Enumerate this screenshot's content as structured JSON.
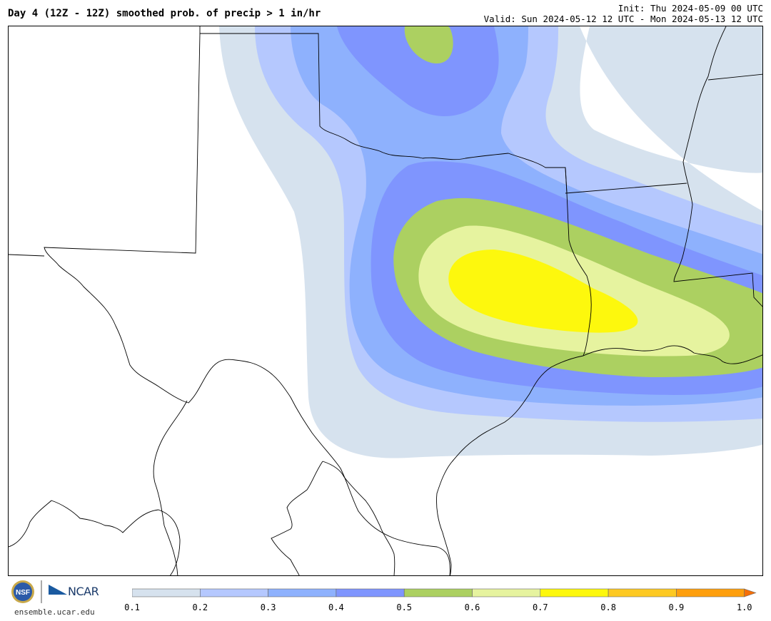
{
  "title": "Day 4 (12Z - 12Z) smoothed prob. of precip > 1 in/hr",
  "init_text": "Init: Thu 2024-05-09 00 UTC",
  "valid_text": "Valid: Sun 2024-05-12 12 UTC - Mon 2024-05-13 12 UTC",
  "logo": {
    "org_text": "NCAR",
    "website": "ensemble.ucar.edu",
    "nsf_text": "NSF"
  },
  "colorbar": {
    "levels": [
      "0.1",
      "0.2",
      "0.3",
      "0.4",
      "0.5",
      "0.6",
      "0.7",
      "0.8",
      "0.9",
      "1.0"
    ],
    "colors": [
      "#d6e2ee",
      "#b5c8fe",
      "#8eb1fd",
      "#7f95fe",
      "#acd061",
      "#e6f39f",
      "#fdf80d",
      "#fdc922",
      "#fe9f0d",
      "#f56f08"
    ]
  },
  "contour_colors": {
    "p10": "#d6e2ee",
    "p20": "#b5c8fe",
    "p30": "#8eb1fd",
    "p40": "#7f95fe",
    "p50": "#acd061",
    "p60": "#e6f39f",
    "p70": "#fdf80d"
  }
}
